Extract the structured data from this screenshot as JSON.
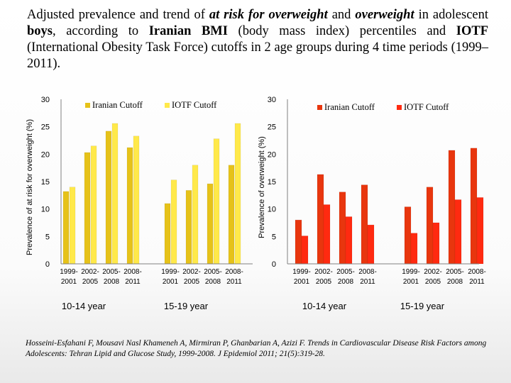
{
  "title": {
    "p1": "Adjusted prevalence and trend of ",
    "e1": "at risk for overweight",
    "p2": " and  ",
    "e2": "overweight",
    "p3": " in adolescent ",
    "b1": "boys",
    "p4": ", according to ",
    "b2": "Iranian BMI",
    "p5": " (body mass index) percentiles and ",
    "b3": "IOTF",
    "p6": " (International Obesity Task Force) cutoffs in 2 age groups during 4 time periods (1999–2011)."
  },
  "citation": "Hosseini-Esfahani F, Mousavi Nasl Khameneh A, Mirmiran P, Ghanbarian A, Azizi F. Trends in Cardiovascular Disease Risk Factors among Adolescents: Tehran Lipid and Glucose Study, 1999-2008. J Epidemiol 2011; 21(5):319-28.",
  "chart_data": [
    {
      "type": "bar",
      "ylabel": "Prevalence of at risk for overweight (%)",
      "ylim": [
        0,
        30
      ],
      "yticks": [
        "0",
        "5",
        "10",
        "15",
        "20",
        "25",
        "30"
      ],
      "legend_placement": "top",
      "groups": [
        {
          "label": "10-14 year",
          "periods": [
            [
              "1999-",
              "2001"
            ],
            [
              "2002-",
              "2005"
            ],
            [
              "2005-",
              "2008"
            ],
            [
              "2008-",
              "2011"
            ]
          ]
        },
        {
          "label": "15-19 year",
          "periods": [
            [
              "1999-",
              "2001"
            ],
            [
              "2002-",
              "2005"
            ],
            [
              "2005-",
              "2008"
            ],
            [
              "2008-",
              "2011"
            ]
          ]
        }
      ],
      "series": [
        {
          "name": "Iranian Cutoff",
          "color": "#e6c219",
          "values": [
            13.2,
            20.3,
            24.2,
            21.2,
            11.0,
            13.4,
            14.6,
            18.0
          ]
        },
        {
          "name": "IOTF Cutoff",
          "color": "#ffe94a",
          "values": [
            14.0,
            21.5,
            25.6,
            23.3,
            15.3,
            18.0,
            22.8,
            25.6
          ]
        }
      ]
    },
    {
      "type": "bar",
      "ylabel": "Prevalence of overweight (%)",
      "ylim": [
        0,
        30
      ],
      "yticks": [
        "0",
        "5",
        "10",
        "15",
        "20",
        "25",
        "30"
      ],
      "legend_placement": "top",
      "groups": [
        {
          "label": "10-14 year",
          "periods": [
            [
              "1999-",
              "2001"
            ],
            [
              "2002-",
              "2005"
            ],
            [
              "2005-",
              "2008"
            ],
            [
              "2008-",
              "2011"
            ]
          ]
        },
        {
          "label": "15-19 year",
          "periods": [
            [
              "1999-",
              "2001"
            ],
            [
              "2002-",
              "2005"
            ],
            [
              "2005-",
              "2008"
            ],
            [
              "2008-",
              "2011"
            ]
          ]
        }
      ],
      "series": [
        {
          "name": "Iranian Cutoff",
          "color": "#e8360e",
          "values": [
            8.0,
            16.3,
            13.1,
            14.4,
            10.4,
            14.0,
            20.7,
            21.1
          ]
        },
        {
          "name": "IOTF Cutoff",
          "color": "#ff2a10",
          "values": [
            5.1,
            10.8,
            8.6,
            7.1,
            5.6,
            7.5,
            11.7,
            12.1
          ]
        }
      ]
    }
  ]
}
